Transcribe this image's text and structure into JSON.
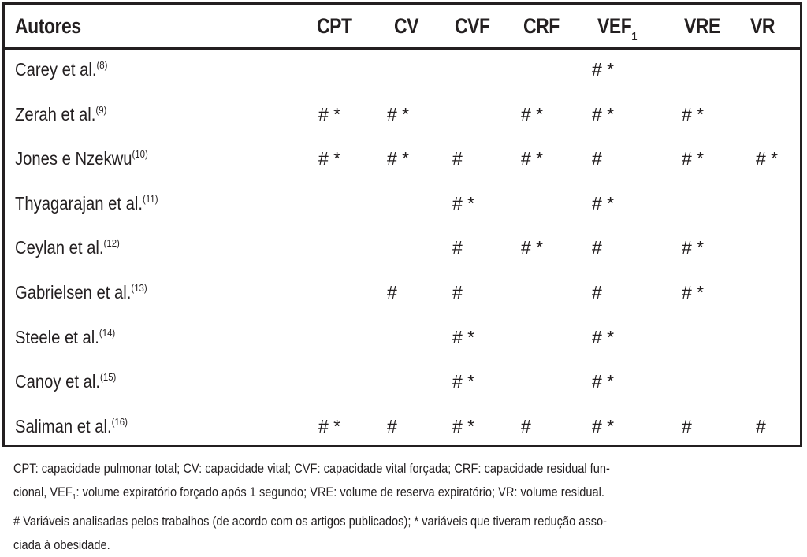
{
  "header": {
    "author_label": "Autores",
    "columns": [
      "CPT",
      "CV",
      "CVF",
      "CRF",
      "VEF",
      "VRE",
      "VR"
    ],
    "vef_subscript": "1"
  },
  "rows": [
    {
      "author": "Carey et al.",
      "ref": "(8)",
      "cells": [
        "",
        "",
        "",
        "",
        "# *",
        "",
        ""
      ]
    },
    {
      "author": "Zerah et al.",
      "ref": "(9)",
      "cells": [
        "# *",
        "# *",
        "",
        "# *",
        "# *",
        "# *",
        ""
      ]
    },
    {
      "author": "Jones e Nzekwu",
      "ref": "(10)",
      "cells": [
        "# *",
        "# *",
        "#",
        "# *",
        "#",
        "# *",
        "# *"
      ]
    },
    {
      "author": "Thyagarajan et al.",
      "ref": "(11)",
      "cells": [
        "",
        "",
        "# *",
        "",
        "# *",
        "",
        ""
      ]
    },
    {
      "author": "Ceylan et al.",
      "ref": "(12)",
      "cells": [
        "",
        "",
        "#",
        "# *",
        "#",
        "# *",
        ""
      ]
    },
    {
      "author": "Gabrielsen et al.",
      "ref": "(13)",
      "cells": [
        "",
        "#",
        "#",
        "",
        "#",
        "# *",
        ""
      ]
    },
    {
      "author": "Steele et al.",
      "ref": "(14)",
      "cells": [
        "",
        "",
        "# *",
        "",
        "# *",
        "",
        ""
      ]
    },
    {
      "author": "Canoy et al.",
      "ref": "(15)",
      "cells": [
        "",
        "",
        "# *",
        "",
        "# *",
        "",
        ""
      ]
    },
    {
      "author": "Saliman et al.",
      "ref": "(16)",
      "cells": [
        "# *",
        "#",
        "# *",
        "#",
        "# *",
        "#",
        "#"
      ]
    }
  ],
  "footnote": {
    "line1": "CPT: capacidade pulmonar total; CV: capacidade vital; CVF: capacidade vital forçada; CRF: capacidade residual fun-",
    "line2a": "cional, VEF",
    "line2sub": "1",
    "line2b": ": volume expiratório forçado após 1 segundo; VRE: volume de reserva expiratório; VR: volume residual.",
    "line3": "# Variáveis analisadas pelos trabalhos (de acordo com os artigos publicados); * variáveis que tiveram redução asso-",
    "line4": "ciada à obesidade."
  }
}
